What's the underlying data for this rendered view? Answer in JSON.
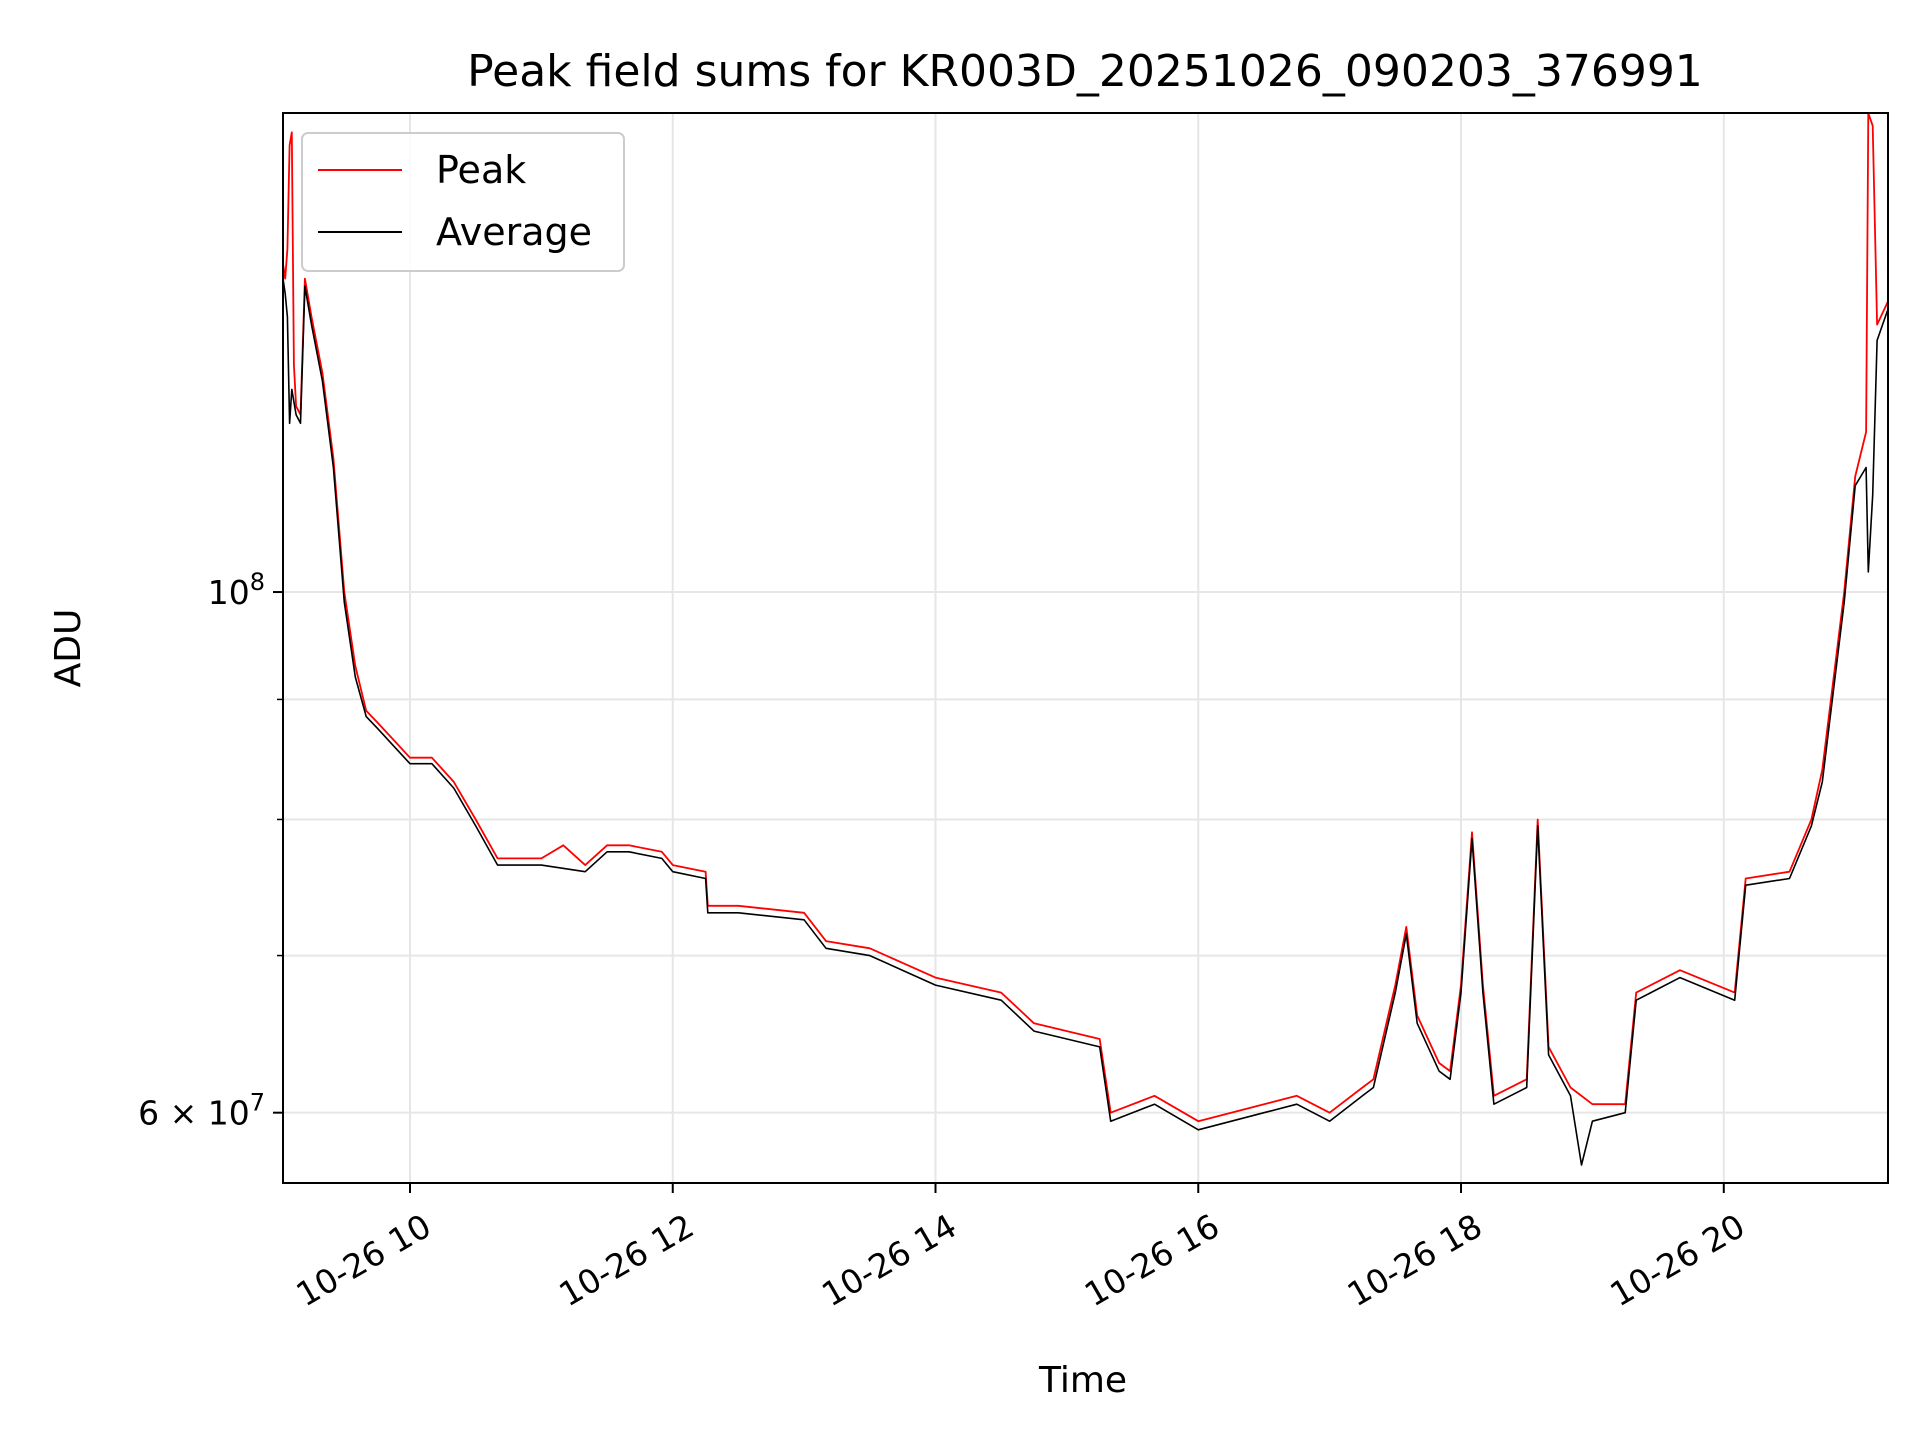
{
  "chart_data": {
    "type": "line",
    "title": "Peak field sums for KR003D_20251026_090203_376991",
    "xlabel": "Time",
    "ylabel": "ADU",
    "yscale": "log",
    "x_range": [
      "10-26 09:02",
      "10-26 21:15"
    ],
    "ylim": [
      56000000,
      160000000
    ],
    "grid": true,
    "legend": "upper-left",
    "x_tick_labels": [
      "10-26 10",
      "10-26 12",
      "10-26 14",
      "10-26 16",
      "10-26 18",
      "10-26 20"
    ],
    "y_major_ticks": [
      {
        "value": 100000000,
        "base": "10",
        "exp": "8"
      },
      {
        "value": 60000000,
        "mantissa": "6 × 10",
        "exp": "7"
      }
    ],
    "y_minor_ticks": [
      70000000,
      80000000,
      90000000
    ],
    "series": [
      {
        "name": "Peak",
        "color": "#ff0000",
        "points": [
          [
            "10-26 09:02",
            138000000.0
          ],
          [
            "10-26 09:03",
            136000000.0
          ],
          [
            "10-26 09:04",
            140000000.0
          ],
          [
            "10-26 09:05",
            155000000.0
          ],
          [
            "10-26 09:06",
            157000000.0
          ],
          [
            "10-26 09:07",
            125000000.0
          ],
          [
            "10-26 09:08",
            120000000.0
          ],
          [
            "10-26 09:10",
            119000000.0
          ],
          [
            "10-26 09:12",
            136000000.0
          ],
          [
            "10-26 09:15",
            131000000.0
          ],
          [
            "10-26 09:20",
            124000000.0
          ],
          [
            "10-26 09:25",
            114000000.0
          ],
          [
            "10-26 09:30",
            100000000.0
          ],
          [
            "10-26 09:35",
            93000000.0
          ],
          [
            "10-26 09:40",
            89000000.0
          ],
          [
            "10-26 09:45",
            88000000.0
          ],
          [
            "10-26 09:50",
            87000000.0
          ],
          [
            "10-26 10:00",
            85000000.0
          ],
          [
            "10-26 10:10",
            85000000.0
          ],
          [
            "10-26 10:20",
            83000000.0
          ],
          [
            "10-26 10:30",
            80000000.0
          ],
          [
            "10-26 10:40",
            77000000.0
          ],
          [
            "10-26 11:00",
            77000000.0
          ],
          [
            "10-26 11:10",
            78000000.0
          ],
          [
            "10-26 11:20",
            76500000.0
          ],
          [
            "10-26 11:30",
            78000000.0
          ],
          [
            "10-26 11:40",
            78000000.0
          ],
          [
            "10-26 11:55",
            77500000.0
          ],
          [
            "10-26 12:00",
            76500000.0
          ],
          [
            "10-26 12:15",
            76000000.0
          ],
          [
            "10-26 12:16",
            73500000.0
          ],
          [
            "10-26 12:30",
            73500000.0
          ],
          [
            "10-26 13:00",
            73000000.0
          ],
          [
            "10-26 13:10",
            71000000.0
          ],
          [
            "10-26 13:30",
            70500000.0
          ],
          [
            "10-26 14:00",
            68500000.0
          ],
          [
            "10-26 14:30",
            67500000.0
          ],
          [
            "10-26 14:45",
            65500000.0
          ],
          [
            "10-26 15:00",
            65000000.0
          ],
          [
            "10-26 15:15",
            64500000.0
          ],
          [
            "10-26 15:20",
            60000000.0
          ],
          [
            "10-26 15:40",
            61000000.0
          ],
          [
            "10-26 16:00",
            59500000.0
          ],
          [
            "10-26 16:30",
            60500000.0
          ],
          [
            "10-26 16:45",
            61000000.0
          ],
          [
            "10-26 17:00",
            60000000.0
          ],
          [
            "10-26 17:15",
            61500000.0
          ],
          [
            "10-26 17:20",
            62000000.0
          ],
          [
            "10-26 17:30",
            68000000.0
          ],
          [
            "10-26 17:35",
            72000000.0
          ],
          [
            "10-26 17:40",
            66000000.0
          ],
          [
            "10-26 17:50",
            63000000.0
          ],
          [
            "10-26 17:55",
            62500000.0
          ],
          [
            "10-26 18:00",
            68000000.0
          ],
          [
            "10-26 18:05",
            79000000.0
          ],
          [
            "10-26 18:10",
            68000000.0
          ],
          [
            "10-26 18:15",
            61000000.0
          ],
          [
            "10-26 18:30",
            62000000.0
          ],
          [
            "10-26 18:35",
            80000000.0
          ],
          [
            "10-26 18:40",
            64000000.0
          ],
          [
            "10-26 18:50",
            61500000.0
          ],
          [
            "10-26 19:00",
            60500000.0
          ],
          [
            "10-26 19:15",
            60500000.0
          ],
          [
            "10-26 19:20",
            67500000.0
          ],
          [
            "10-26 19:40",
            69000000.0
          ],
          [
            "10-26 20:05",
            67500000.0
          ],
          [
            "10-26 20:10",
            75500000.0
          ],
          [
            "10-26 20:30",
            76000000.0
          ],
          [
            "10-26 20:40",
            80000000.0
          ],
          [
            "10-26 20:45",
            84000000.0
          ],
          [
            "10-26 20:55",
            100000000.0
          ],
          [
            "10-26 21:00",
            112000000.0
          ],
          [
            "10-26 21:05",
            117000000.0
          ],
          [
            "10-26 21:06",
            160000000.0
          ],
          [
            "10-26 21:08",
            158000000.0
          ],
          [
            "10-26 21:10",
            130000000.0
          ],
          [
            "10-26 21:15",
            133000000.0
          ]
        ]
      },
      {
        "name": "Average",
        "color": "#000000",
        "points": [
          [
            "10-26 09:02",
            136000000.0
          ],
          [
            "10-26 09:03",
            134000000.0
          ],
          [
            "10-26 09:04",
            131000000.0
          ],
          [
            "10-26 09:05",
            118000000.0
          ],
          [
            "10-26 09:06",
            122000000.0
          ],
          [
            "10-26 09:08",
            119000000.0
          ],
          [
            "10-26 09:10",
            118000000.0
          ],
          [
            "10-26 09:12",
            135000000.0
          ],
          [
            "10-26 09:15",
            130000000.0
          ],
          [
            "10-26 09:20",
            123000000.0
          ],
          [
            "10-26 09:25",
            113000000.0
          ],
          [
            "10-26 09:30",
            99000000.0
          ],
          [
            "10-26 09:35",
            92000000.0
          ],
          [
            "10-26 09:40",
            88500000.0
          ],
          [
            "10-26 09:45",
            87500000.0
          ],
          [
            "10-26 09:50",
            86500000.0
          ],
          [
            "10-26 10:00",
            84500000.0
          ],
          [
            "10-26 10:10",
            84500000.0
          ],
          [
            "10-26 10:20",
            82500000.0
          ],
          [
            "10-26 10:30",
            79500000.0
          ],
          [
            "10-26 10:40",
            76500000.0
          ],
          [
            "10-26 11:00",
            76500000.0
          ],
          [
            "10-26 11:20",
            76000000.0
          ],
          [
            "10-26 11:30",
            77500000.0
          ],
          [
            "10-26 11:40",
            77500000.0
          ],
          [
            "10-26 11:55",
            77000000.0
          ],
          [
            "10-26 12:00",
            76000000.0
          ],
          [
            "10-26 12:15",
            75500000.0
          ],
          [
            "10-26 12:16",
            73000000.0
          ],
          [
            "10-26 12:30",
            73000000.0
          ],
          [
            "10-26 13:00",
            72500000.0
          ],
          [
            "10-26 13:10",
            70500000.0
          ],
          [
            "10-26 13:30",
            70000000.0
          ],
          [
            "10-26 14:00",
            68000000.0
          ],
          [
            "10-26 14:30",
            67000000.0
          ],
          [
            "10-26 14:45",
            65000000.0
          ],
          [
            "10-26 15:00",
            64500000.0
          ],
          [
            "10-26 15:15",
            64000000.0
          ],
          [
            "10-26 15:20",
            59500000.0
          ],
          [
            "10-26 15:40",
            60500000.0
          ],
          [
            "10-26 16:00",
            59000000.0
          ],
          [
            "10-26 16:30",
            60000000.0
          ],
          [
            "10-26 16:45",
            60500000.0
          ],
          [
            "10-26 17:00",
            59500000.0
          ],
          [
            "10-26 17:15",
            61000000.0
          ],
          [
            "10-26 17:20",
            61500000.0
          ],
          [
            "10-26 17:30",
            67500000.0
          ],
          [
            "10-26 17:35",
            71500000.0
          ],
          [
            "10-26 17:40",
            65500000.0
          ],
          [
            "10-26 17:50",
            62500000.0
          ],
          [
            "10-26 17:55",
            62000000.0
          ],
          [
            "10-26 18:00",
            67500000.0
          ],
          [
            "10-26 18:05",
            78500000.0
          ],
          [
            "10-26 18:10",
            67500000.0
          ],
          [
            "10-26 18:15",
            60500000.0
          ],
          [
            "10-26 18:30",
            61500000.0
          ],
          [
            "10-26 18:35",
            79500000.0
          ],
          [
            "10-26 18:40",
            63500000.0
          ],
          [
            "10-26 18:50",
            61000000.0
          ],
          [
            "10-26 18:55",
            57000000.0
          ],
          [
            "10-26 19:00",
            59500000.0
          ],
          [
            "10-26 19:15",
            60000000.0
          ],
          [
            "10-26 19:20",
            67000000.0
          ],
          [
            "10-26 19:40",
            68500000.0
          ],
          [
            "10-26 20:05",
            67000000.0
          ],
          [
            "10-26 20:10",
            75000000.0
          ],
          [
            "10-26 20:30",
            75500000.0
          ],
          [
            "10-26 20:40",
            79500000.0
          ],
          [
            "10-26 20:45",
            83000000.0
          ],
          [
            "10-26 20:55",
            99000000.0
          ],
          [
            "10-26 21:00",
            111000000.0
          ],
          [
            "10-26 21:05",
            113000000.0
          ],
          [
            "10-26 21:06",
            102000000.0
          ],
          [
            "10-26 21:08",
            110000000.0
          ],
          [
            "10-26 21:10",
            128000000.0
          ],
          [
            "10-26 21:15",
            132000000.0
          ]
        ]
      }
    ]
  }
}
